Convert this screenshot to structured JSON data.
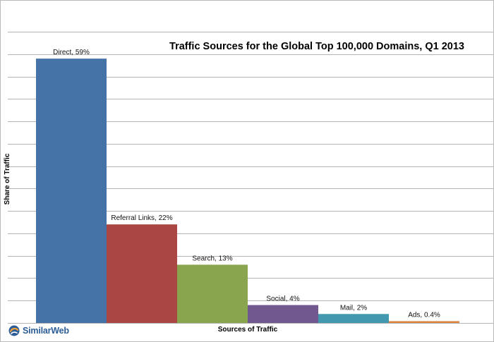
{
  "chart_data": {
    "type": "bar",
    "title": "Traffic Sources for the Global Top 100,000 Domains, Q1 2013",
    "xlabel": "Sources of Traffic",
    "ylabel": "Share of Traffic",
    "ylim": [
      0,
      65
    ],
    "grid": true,
    "categories": [
      "Direct",
      "Referral Links",
      "Search",
      "Social",
      "Mail",
      "Ads"
    ],
    "values": [
      59,
      22,
      13,
      4,
      2,
      0.4
    ],
    "data_labels": [
      "Direct, 59%",
      "Referral Links, 22%",
      "Search, 13%",
      "Social, 4%",
      "Mail, 2%",
      "Ads, 0.4%"
    ],
    "colors": [
      "#4572a7",
      "#aa4643",
      "#89a54e",
      "#71588f",
      "#4198af",
      "#db843d"
    ]
  },
  "logo": {
    "text": "SimilarWeb",
    "icon": "similarweb-logo-icon"
  }
}
